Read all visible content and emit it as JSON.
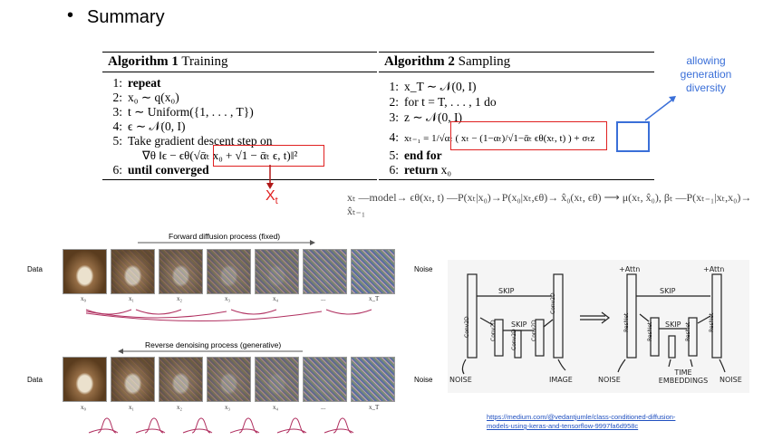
{
  "slide": {
    "bullet": "•",
    "title": "Summary"
  },
  "algorithm1": {
    "heading_bold": "Algorithm 1",
    "heading_rest": "Training",
    "lines": [
      {
        "num": "1:",
        "text": "repeat"
      },
      {
        "num": "2:",
        "text": "x₀ ∼ q(x₀)"
      },
      {
        "num": "3:",
        "text": "t ∼ Uniform({1, . . . , T})"
      },
      {
        "num": "4:",
        "text": "ϵ ∼ 𝒩(0, I)"
      },
      {
        "num": "5:",
        "text": "Take gradient descent step on"
      },
      {
        "num": "",
        "text": "∇θ ‖ϵ − ϵθ(√ᾱₜ x₀ + √1 − ᾱₜ ϵ, t)‖²"
      },
      {
        "num": "6:",
        "text": "until converged"
      }
    ]
  },
  "algorithm2": {
    "heading_bold": "Algorithm 2",
    "heading_rest": "Sampling",
    "lines": [
      {
        "num": "1:",
        "text": "x_T ∼ 𝒩(0, I)"
      },
      {
        "num": "2:",
        "text": "for t = T, . . . , 1 do"
      },
      {
        "num": "3:",
        "text": "z ∼ 𝒩(0, I)"
      },
      {
        "num": "4:",
        "text": "xₜ₋₁ = 1/√αₜ ( xₜ − (1−αₜ)/√1−ᾱₜ ϵθ(xₜ, t) ) + σₜz"
      },
      {
        "num": "5:",
        "text": "end for"
      },
      {
        "num": "6:",
        "text": "return x₀"
      }
    ]
  },
  "annotations": {
    "diversity": "allowing generation diversity",
    "xt": "Xt",
    "chain": "xₜ —model→ ϵθ(xₜ, t) —P(xₜ|x₀)→P(x₀|xₜ,ϵθ)→ x̂₀(xₜ, ϵθ) ⟶ μ(xₜ, x̂₀), βₜ —P(xₜ₋₁|xₜ,x₀)→ x̂ₜ₋₁"
  },
  "forward": {
    "caption": "Forward diffusion process (fixed)",
    "left_label": "Data",
    "right_label": "Noise",
    "x_labels": [
      "x₀",
      "x₁",
      "x₂",
      "x₃",
      "x₄",
      "...",
      "x_T"
    ]
  },
  "reverse": {
    "caption": "Reverse denoising process (generative)",
    "left_label": "Data",
    "right_label": "Noise",
    "x_labels": [
      "x₀",
      "x₁",
      "x₂",
      "x₃",
      "x₄",
      "...",
      "x_T"
    ]
  },
  "unet": {
    "left": {
      "skip1": "SKIP",
      "skip2": "SKIP",
      "conv": "Conv2D",
      "noise": "NOISE",
      "image": "IMAGE"
    },
    "right": {
      "attn": "+Attn",
      "skip1": "SKIP",
      "skip2": "SKIP",
      "resnet": "ResNet",
      "noise": "NOISE",
      "time": "TIME EMBEDDINGS"
    }
  },
  "source_link": "https://medium.com/@vedantjumle/class-conditioned-diffusion-models-using-keras-and-tensorflow-9997fa6d958c",
  "colors": {
    "red": "#e02020",
    "blue": "#3a6fd8",
    "arrow": "#b03060"
  }
}
